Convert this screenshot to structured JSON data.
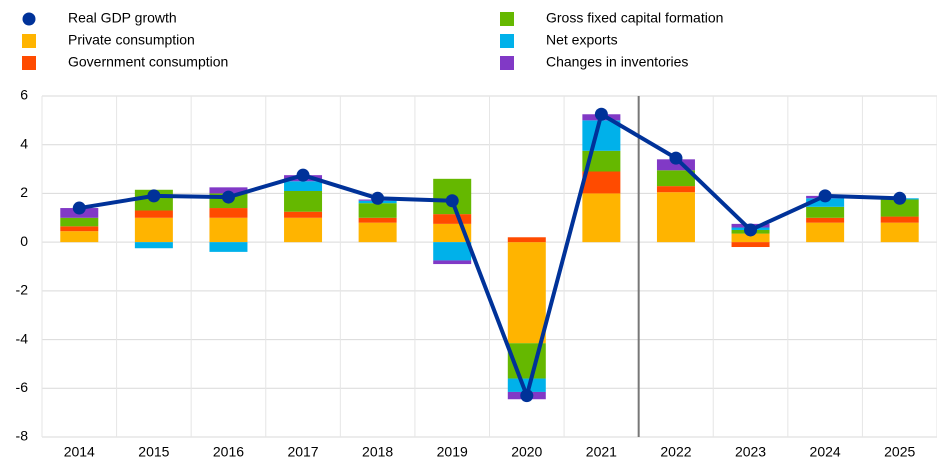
{
  "chart_data": {
    "type": "bar",
    "categories": [
      "2014",
      "2015",
      "2016",
      "2017",
      "2018",
      "2019",
      "2020",
      "2021",
      "2022",
      "2023",
      "2024",
      "2025"
    ],
    "series": [
      {
        "name": "Real GDP growth",
        "type": "line",
        "color": "#003299",
        "values": [
          1.4,
          1.9,
          1.85,
          2.75,
          1.8,
          1.7,
          -6.3,
          5.25,
          3.45,
          0.5,
          1.9,
          1.8
        ]
      },
      {
        "name": "Private consumption",
        "type": "bar",
        "color": "#ffb400",
        "values": [
          0.45,
          1.0,
          1.0,
          1.0,
          0.8,
          0.75,
          -4.15,
          2.0,
          2.05,
          0.35,
          0.8,
          0.8
        ]
      },
      {
        "name": "Government consumption",
        "type": "bar",
        "color": "#ff4b00",
        "values": [
          0.2,
          0.3,
          0.4,
          0.25,
          0.2,
          0.4,
          0.2,
          0.9,
          0.25,
          -0.2,
          0.2,
          0.25
        ]
      },
      {
        "name": "Gross fixed capital formation",
        "type": "bar",
        "color": "#65b800",
        "values": [
          0.35,
          0.85,
          0.6,
          0.85,
          0.6,
          1.45,
          -1.45,
          0.85,
          0.65,
          0.15,
          0.45,
          0.7
        ]
      },
      {
        "name": "Net exports",
        "type": "bar",
        "color": "#00b1ea",
        "values": [
          0.0,
          -0.25,
          -0.4,
          0.4,
          0.1,
          -0.75,
          -0.55,
          1.25,
          0.0,
          0.1,
          0.35,
          0.05
        ]
      },
      {
        "name": "Changes in inventories",
        "type": "bar",
        "color": "#8139c6",
        "values": [
          0.4,
          0.0,
          0.25,
          0.25,
          0.05,
          -0.15,
          -0.3,
          0.25,
          0.45,
          0.15,
          0.1,
          0.0
        ]
      }
    ],
    "ylim": [
      -8,
      6
    ],
    "yticks": [
      -8,
      -6,
      -4,
      -2,
      0,
      2,
      4,
      6
    ],
    "grid": true
  }
}
